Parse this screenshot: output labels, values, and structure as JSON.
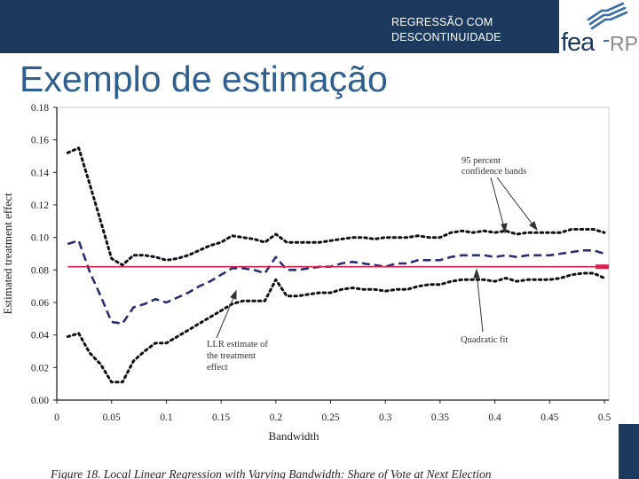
{
  "header": {
    "title_line1": "REGRESSÃO COM",
    "title_line2": "DESCONTINUIDADE"
  },
  "logo": {
    "text_main": "fea",
    "text_suffix": "RP"
  },
  "slide_title": "Exemplo de estimação",
  "colors": {
    "header_bg": "#1c3a5e",
    "title": "#2f5f8f",
    "estimate": "#2a2f6f",
    "bands": "#111111",
    "red_line": "#d62050"
  },
  "chart_data": {
    "type": "line",
    "title": "",
    "xlabel": "Bandwidth",
    "ylabel": "Estimated treatment effect",
    "xlim": [
      0,
      0.5
    ],
    "ylim": [
      0,
      0.18
    ],
    "x_ticks": [
      0,
      0.05,
      0.1,
      0.15,
      0.2,
      0.25,
      0.3,
      0.35,
      0.4,
      0.45,
      0.5
    ],
    "x_tick_labels": [
      "0",
      "0.05",
      "0.1",
      "0.15",
      "0.2",
      "0.25",
      "0.3",
      "0.35",
      "0.4",
      "0.45",
      "0.5"
    ],
    "y_ticks": [
      0,
      0.02,
      0.04,
      0.06,
      0.08,
      0.1,
      0.12,
      0.14,
      0.16,
      0.18
    ],
    "y_tick_labels": [
      "0.00",
      "0.02",
      "0.04",
      "0.06",
      "0.08",
      "0.10",
      "0.12",
      "0.14",
      "0.16",
      "0.18"
    ],
    "x": [
      0.01,
      0.02,
      0.03,
      0.04,
      0.05,
      0.06,
      0.07,
      0.08,
      0.09,
      0.1,
      0.11,
      0.12,
      0.13,
      0.14,
      0.15,
      0.16,
      0.17,
      0.18,
      0.19,
      0.2,
      0.21,
      0.22,
      0.23,
      0.24,
      0.25,
      0.26,
      0.27,
      0.28,
      0.29,
      0.3,
      0.31,
      0.32,
      0.33,
      0.34,
      0.35,
      0.36,
      0.37,
      0.38,
      0.39,
      0.4,
      0.41,
      0.42,
      0.43,
      0.44,
      0.45,
      0.46,
      0.47,
      0.48,
      0.49,
      0.5
    ],
    "series": [
      {
        "role": "upper_band",
        "style": "dotted",
        "values": [
          0.152,
          0.155,
          0.133,
          0.11,
          0.087,
          0.083,
          0.089,
          0.089,
          0.088,
          0.086,
          0.087,
          0.089,
          0.092,
          0.095,
          0.097,
          0.101,
          0.1,
          0.099,
          0.097,
          0.102,
          0.097,
          0.097,
          0.097,
          0.097,
          0.098,
          0.099,
          0.1,
          0.1,
          0.099,
          0.1,
          0.1,
          0.1,
          0.101,
          0.1,
          0.1,
          0.103,
          0.104,
          0.103,
          0.104,
          0.103,
          0.104,
          0.102,
          0.103,
          0.103,
          0.103,
          0.103,
          0.105,
          0.105,
          0.105,
          0.103
        ]
      },
      {
        "role": "estimate",
        "style": "dashed",
        "values": [
          0.096,
          0.098,
          0.079,
          0.064,
          0.048,
          0.047,
          0.057,
          0.059,
          0.062,
          0.06,
          0.063,
          0.066,
          0.07,
          0.073,
          0.077,
          0.081,
          0.081,
          0.08,
          0.078,
          0.088,
          0.08,
          0.08,
          0.081,
          0.082,
          0.082,
          0.084,
          0.085,
          0.084,
          0.083,
          0.082,
          0.084,
          0.084,
          0.086,
          0.086,
          0.086,
          0.088,
          0.089,
          0.089,
          0.089,
          0.088,
          0.089,
          0.088,
          0.089,
          0.089,
          0.089,
          0.09,
          0.091,
          0.092,
          0.092,
          0.09
        ]
      },
      {
        "role": "lower_band",
        "style": "dotted",
        "values": [
          0.039,
          0.041,
          0.029,
          0.022,
          0.011,
          0.011,
          0.024,
          0.03,
          0.035,
          0.035,
          0.039,
          0.043,
          0.047,
          0.051,
          0.055,
          0.059,
          0.061,
          0.061,
          0.061,
          0.074,
          0.064,
          0.064,
          0.065,
          0.066,
          0.066,
          0.068,
          0.069,
          0.068,
          0.068,
          0.067,
          0.068,
          0.068,
          0.07,
          0.071,
          0.071,
          0.073,
          0.074,
          0.074,
          0.074,
          0.073,
          0.075,
          0.073,
          0.074,
          0.074,
          0.074,
          0.075,
          0.077,
          0.078,
          0.078,
          0.075
        ]
      }
    ],
    "reference_line": {
      "y": 0.082,
      "x_from": 0.01,
      "x_to": 0.5
    },
    "annotations": [
      {
        "line1": "95 percent",
        "line2": "confidence bands"
      },
      {
        "line1": "LLR estimate of",
        "line2": "the treatment",
        "line3": "effect"
      },
      {
        "line1": "Quadratic fit"
      }
    ],
    "caption": "Figure 18. Local Linear Regression with Varying Bandwidth: Share of Vote at Next Election"
  }
}
